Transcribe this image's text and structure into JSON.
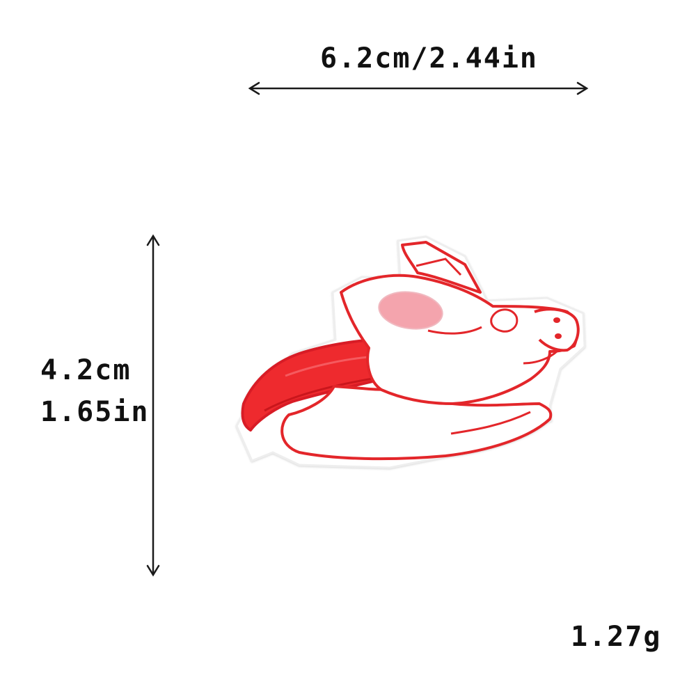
{
  "dimensions": {
    "width_label": "6.2cm/2.44in",
    "height_cm": "4.2cm",
    "height_in": "1.65in"
  },
  "weight_label": "1.27g",
  "product": {
    "subject": "flying pig with cape embroidered patch",
    "colors": {
      "outline": "#e3262b",
      "cape": "#ee2a2f",
      "body": "#ffffff",
      "ear_inner": "#f4a4ad",
      "arrow": "#1a1a1a"
    }
  }
}
